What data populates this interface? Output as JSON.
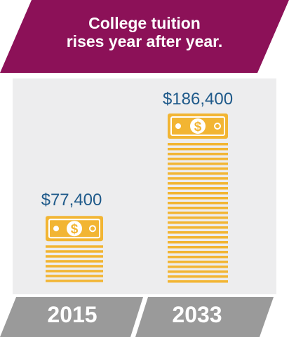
{
  "colors": {
    "banner": "#8c1158",
    "panel": "#ededee",
    "footer": "#9a9a9a",
    "money": "#f2b533",
    "value_text": "#1f5a8a"
  },
  "banner": {
    "line1": "College tuition",
    "line2": "rises year after year."
  },
  "icons": {
    "bill": "dollar-bill-icon"
  },
  "chart_data": {
    "type": "bar",
    "title": "College tuition rises year after year.",
    "categories": [
      "2015",
      "2033"
    ],
    "values": [
      77400,
      186400
    ],
    "value_labels": [
      "$77,400",
      "$186,400"
    ],
    "ylim": [
      0,
      186400
    ]
  }
}
